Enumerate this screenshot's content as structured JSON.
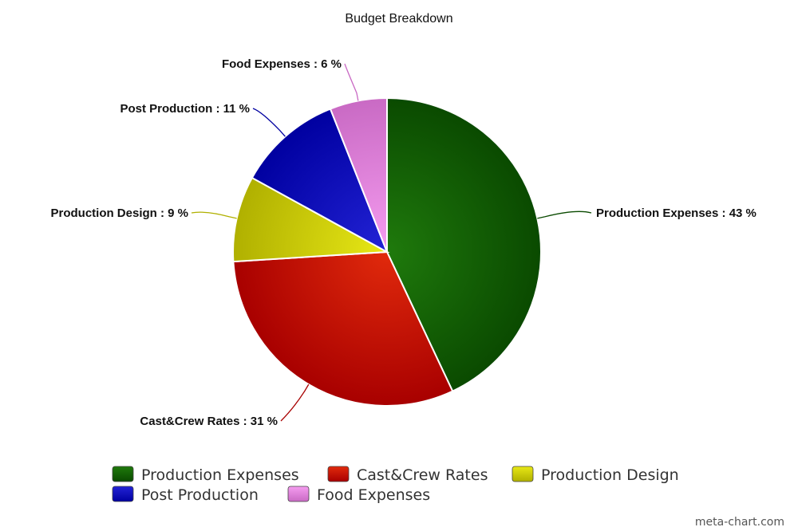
{
  "chart_data": {
    "type": "pie",
    "title": "Budget Breakdown",
    "series": [
      {
        "name": "Production Expenses",
        "value": 43,
        "label": "Production Expenses : 43 %",
        "color": "#1f7a0c",
        "shade": "#0a4a00"
      },
      {
        "name": "Cast&Crew Rates",
        "value": 31,
        "label": "Cast&Crew Rates : 31 %",
        "color": "#e12a0c",
        "shade": "#a80000"
      },
      {
        "name": "Production Design",
        "value": 9,
        "label": "Production Design : 9 %",
        "color": "#e8e816",
        "shade": "#b0b000"
      },
      {
        "name": "Post Production",
        "value": 11,
        "label": "Post Production : 11 %",
        "color": "#2323d6",
        "shade": "#0000a0"
      },
      {
        "name": "Food Expenses",
        "value": 6,
        "label": "Food Expenses : 6 %",
        "color": "#f59cf0",
        "shade": "#c96ac4"
      }
    ],
    "legend": {
      "placement": "bottom",
      "entries": [
        "Production Expenses",
        "Cast&Crew Rates",
        "Production Design",
        "Post Production",
        "Food Expenses"
      ]
    }
  },
  "watermark": "meta-chart.com"
}
